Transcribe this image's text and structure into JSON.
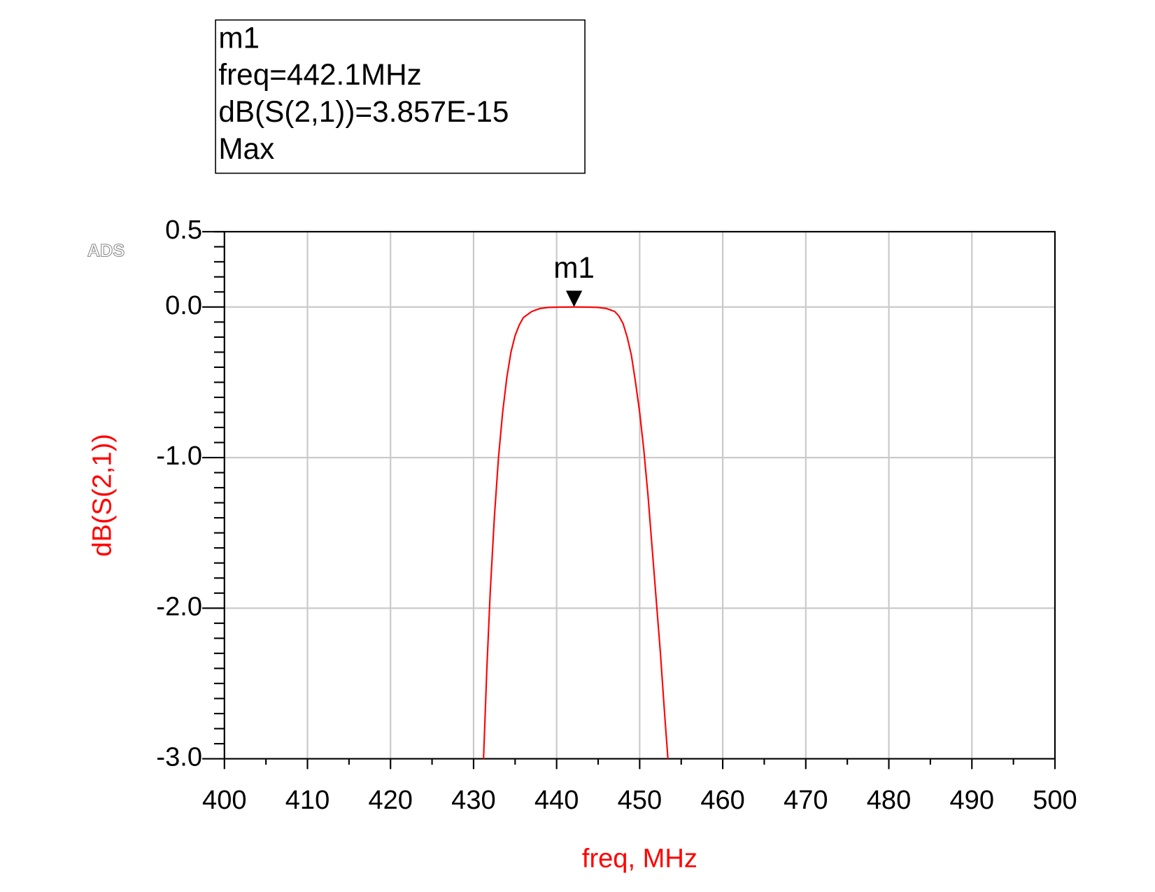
{
  "chart_data": {
    "type": "line",
    "xlabel": "freq, MHz",
    "ylabel": "dB(S(2,1))",
    "logo": "ADS",
    "x": [
      431.2,
      431.6,
      432.0,
      432.5,
      433.0,
      433.5,
      434.0,
      434.5,
      435.0,
      435.5,
      436.0,
      437.0,
      438.0,
      439.0,
      440.0,
      442.1,
      444.0,
      445.0,
      446.0,
      447.0,
      447.5,
      448.0,
      448.5,
      449.0,
      449.5,
      450.0,
      450.5,
      451.0,
      451.5,
      452.0,
      452.5,
      453.0,
      453.4
    ],
    "series": [
      {
        "name": "dB(S(2,1))",
        "color": "#ff0000",
        "values": [
          -3.0,
          -2.4,
          -1.9,
          -1.4,
          -1.0,
          -0.7,
          -0.47,
          -0.3,
          -0.19,
          -0.12,
          -0.07,
          -0.03,
          -0.01,
          -0.003,
          -0.001,
          0.0,
          -0.001,
          -0.003,
          -0.01,
          -0.03,
          -0.06,
          -0.11,
          -0.2,
          -0.32,
          -0.5,
          -0.7,
          -0.95,
          -1.25,
          -1.6,
          -1.95,
          -2.3,
          -2.7,
          -3.0
        ]
      }
    ],
    "xlim": [
      400,
      500
    ],
    "xticks": [
      400,
      410,
      420,
      430,
      440,
      450,
      460,
      470,
      480,
      490,
      500
    ],
    "ylim": [
      -3.0,
      0.5
    ],
    "yticks": [
      {
        "value": -3.0,
        "label": "-3.0"
      },
      {
        "value": -2.0,
        "label": "-2.0"
      },
      {
        "value": -1.0,
        "label": "-1.0"
      },
      {
        "value": 0.0,
        "label": "0.0"
      },
      {
        "value": 0.5,
        "label": "0.5"
      }
    ],
    "grid": true,
    "marker": {
      "name": "m1",
      "x": 442.1,
      "y": 3.857e-15,
      "readout": [
        "m1",
        "freq=442.1MHz",
        "dB(S(2,1))=3.857E-15",
        "Max"
      ]
    }
  }
}
